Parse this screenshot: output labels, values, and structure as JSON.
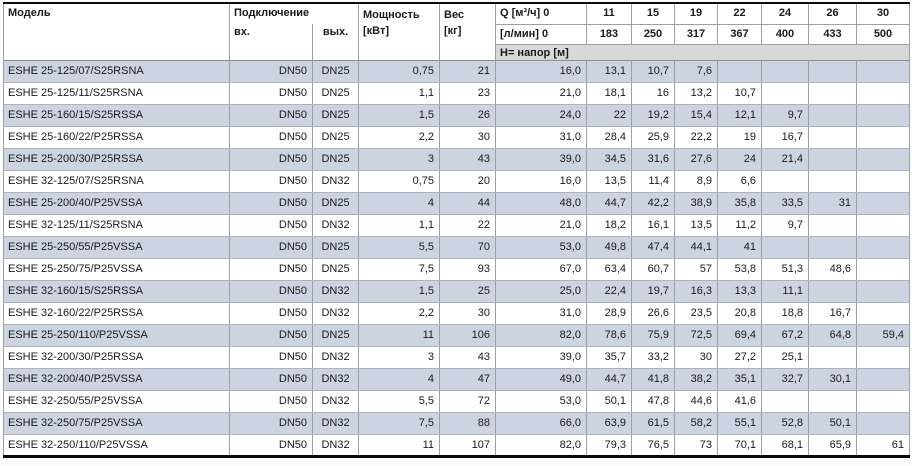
{
  "colors": {
    "row_alt": "#ccd4e2",
    "head_band_bg": "#d8d8d8",
    "grid_line": "#9aa0a6",
    "row_line": "#adb3bd",
    "outer_border": "#0a0a0a",
    "text": "#1a1a1a"
  },
  "table": {
    "header": {
      "model": "Модель",
      "connection": "Подключение",
      "inlet": "вх.",
      "outlet": "вых.",
      "power": "Мощность",
      "power_unit": "[кВт]",
      "weight": "Вес",
      "weight_unit": "[кг]",
      "q_m3h": "Q [м³/ч] 0",
      "q_lmin": "[л/мин] 0",
      "head_band": "Н= напор [м]",
      "q_flows": [
        "11",
        "15",
        "19",
        "22",
        "24",
        "26",
        "30"
      ],
      "lmin_flows": [
        "183",
        "250",
        "317",
        "367",
        "400",
        "433",
        "500"
      ]
    },
    "rows": [
      {
        "model": "ESHE 25-125/07/S25RSNA",
        "inlet": "DN50",
        "outlet": "DN25",
        "power": "0,75",
        "weight": "21",
        "heads": [
          "16,0",
          "13,1",
          "10,7",
          "7,6",
          "",
          "",
          "",
          ""
        ]
      },
      {
        "model": "ESHE 25-125/11/S25RSNA",
        "inlet": "DN50",
        "outlet": "DN25",
        "power": "1,1",
        "weight": "23",
        "heads": [
          "21,0",
          "18,1",
          "16",
          "13,2",
          "10,7",
          "",
          "",
          ""
        ]
      },
      {
        "model": "ESHE 25-160/15/S25RSSA",
        "inlet": "DN50",
        "outlet": "DN25",
        "power": "1,5",
        "weight": "26",
        "heads": [
          "24,0",
          "22",
          "19,2",
          "15,4",
          "12,1",
          "9,7",
          "",
          ""
        ]
      },
      {
        "model": "ESHE 25-160/22/P25RSSA",
        "inlet": "DN50",
        "outlet": "DN25",
        "power": "2,2",
        "weight": "30",
        "heads": [
          "31,0",
          "28,4",
          "25,9",
          "22,2",
          "19",
          "16,7",
          "",
          ""
        ]
      },
      {
        "model": "ESHE 25-200/30/P25RSSA",
        "inlet": "DN50",
        "outlet": "DN25",
        "power": "3",
        "weight": "43",
        "heads": [
          "39,0",
          "34,5",
          "31,6",
          "27,6",
          "24",
          "21,4",
          "",
          ""
        ]
      },
      {
        "model": "ESHE 32-125/07/S25RSNA",
        "inlet": "DN50",
        "outlet": "DN32",
        "power": "0,75",
        "weight": "20",
        "heads": [
          "16,0",
          "13,5",
          "11,4",
          "8,9",
          "6,6",
          "",
          "",
          ""
        ]
      },
      {
        "model": "ESHE 25-200/40/P25VSSA",
        "inlet": "DN50",
        "outlet": "DN25",
        "power": "4",
        "weight": "44",
        "heads": [
          "48,0",
          "44,7",
          "42,2",
          "38,9",
          "35,8",
          "33,5",
          "31",
          ""
        ]
      },
      {
        "model": "ESHE 32-125/11/S25RSNA",
        "inlet": "DN50",
        "outlet": "DN32",
        "power": "1,1",
        "weight": "22",
        "heads": [
          "21,0",
          "18,2",
          "16,1",
          "13,5",
          "11,2",
          "9,7",
          "",
          ""
        ]
      },
      {
        "model": "ESHE 25-250/55/P25VSSA",
        "inlet": "DN50",
        "outlet": "DN25",
        "power": "5,5",
        "weight": "70",
        "heads": [
          "53,0",
          "49,8",
          "47,4",
          "44,1",
          "41",
          "",
          "",
          ""
        ]
      },
      {
        "model": "ESHE 25-250/75/P25VSSA",
        "inlet": "DN50",
        "outlet": "DN25",
        "power": "7,5",
        "weight": "93",
        "heads": [
          "67,0",
          "63,4",
          "60,7",
          "57",
          "53,8",
          "51,3",
          "48,6",
          ""
        ]
      },
      {
        "model": "ESHE 32-160/15/S25RSSA",
        "inlet": "DN50",
        "outlet": "DN32",
        "power": "1,5",
        "weight": "25",
        "heads": [
          "25,0",
          "22,4",
          "19,7",
          "16,3",
          "13,3",
          "11,1",
          "",
          ""
        ]
      },
      {
        "model": "ESHE 32-160/22/P25RSSA",
        "inlet": "DN50",
        "outlet": "DN32",
        "power": "2,2",
        "weight": "30",
        "heads": [
          "31,0",
          "28,9",
          "26,6",
          "23,5",
          "20,8",
          "18,8",
          "16,7",
          ""
        ]
      },
      {
        "model": "ESHE 25-250/110/P25VSSA",
        "inlet": "DN50",
        "outlet": "DN25",
        "power": "11",
        "weight": "106",
        "heads": [
          "82,0",
          "78,6",
          "75,9",
          "72,5",
          "69,4",
          "67,2",
          "64,8",
          "59,4"
        ]
      },
      {
        "model": "ESHE 32-200/30/P25RSSA",
        "inlet": "DN50",
        "outlet": "DN32",
        "power": "3",
        "weight": "43",
        "heads": [
          "39,0",
          "35,7",
          "33,2",
          "30",
          "27,2",
          "25,1",
          "",
          ""
        ]
      },
      {
        "model": "ESHE 32-200/40/P25VSSA",
        "inlet": "DN50",
        "outlet": "DN32",
        "power": "4",
        "weight": "47",
        "heads": [
          "49,0",
          "44,7",
          "41,8",
          "38,2",
          "35,1",
          "32,7",
          "30,1",
          ""
        ]
      },
      {
        "model": "ESHE 32-250/55/P25VSSA",
        "inlet": "DN50",
        "outlet": "DN32",
        "power": "5,5",
        "weight": "72",
        "heads": [
          "53,0",
          "50,1",
          "47,8",
          "44,6",
          "41,6",
          "",
          "",
          ""
        ]
      },
      {
        "model": "ESHE 32-250/75/P25VSSA",
        "inlet": "DN50",
        "outlet": "DN32",
        "power": "7,5",
        "weight": "88",
        "heads": [
          "66,0",
          "63,9",
          "61,5",
          "58,2",
          "55,1",
          "52,8",
          "50,1",
          ""
        ]
      },
      {
        "model": "ESHE 32-250/110/P25VSSA",
        "inlet": "DN50",
        "outlet": "DN32",
        "power": "11",
        "weight": "107",
        "heads": [
          "82,0",
          "79,3",
          "76,5",
          "73",
          "70,1",
          "68,1",
          "65,9",
          "61"
        ]
      }
    ]
  }
}
